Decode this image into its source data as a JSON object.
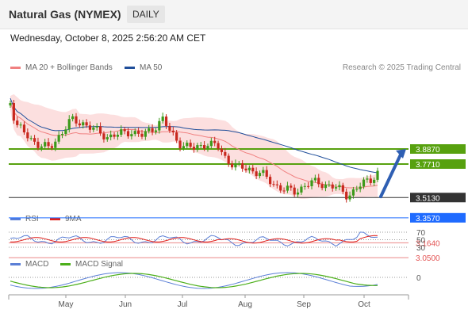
{
  "header": {
    "title": "Natural Gas (NYMEX)",
    "period": "DAILY"
  },
  "datetime": "Wednesday, October 8, 2025 2:56:20 AM CET",
  "credit": "Research © 2025 Trading Central",
  "legend": {
    "main": [
      {
        "label": "MA 20 + Bollinger Bands",
        "color": "#f08080"
      },
      {
        "label": "MA 50",
        "color": "#1f4e9a"
      }
    ],
    "rsi": [
      {
        "label": "RSI",
        "color": "#5b7fd6"
      },
      {
        "label": "9MA",
        "color": "#e0201b"
      }
    ],
    "macd": [
      {
        "label": "MACD",
        "color": "#5b7fd6"
      },
      {
        "label": "MACD Signal",
        "color": "#4caf1a"
      }
    ]
  },
  "chart_data": [
    {
      "type": "candlestick",
      "x_ticks": [
        "May",
        "Jun",
        "Jul",
        "Aug",
        "Sep",
        "Oct"
      ],
      "price_levels": [
        {
          "label": "3.8870",
          "value": 3.887,
          "style": "resistance",
          "color": "#57a10f"
        },
        {
          "label": "3.7710",
          "value": 3.771,
          "style": "resistance",
          "color": "#57a10f"
        },
        {
          "label": "3.5130",
          "value": 3.513,
          "style": "last",
          "color": "#333333"
        },
        {
          "label": "3.3570",
          "value": 3.357,
          "style": "pivot",
          "color": "#1f6bff"
        },
        {
          "label": "3.1640",
          "value": 3.164,
          "style": "support",
          "color": "#e35454"
        },
        {
          "label": "3.0500",
          "value": 3.05,
          "style": "support",
          "color": "#e35454"
        }
      ],
      "target_arrow": {
        "from": 3.52,
        "to": 3.887
      }
    },
    {
      "type": "line",
      "name": "RSI",
      "ticks": [
        {
          "label": "70",
          "value": 70
        },
        {
          "label": "50",
          "value": 50
        },
        {
          "label": "30",
          "value": 30
        }
      ]
    },
    {
      "type": "line",
      "name": "MACD",
      "ticks": [
        {
          "label": "0",
          "value": 0
        }
      ]
    }
  ]
}
